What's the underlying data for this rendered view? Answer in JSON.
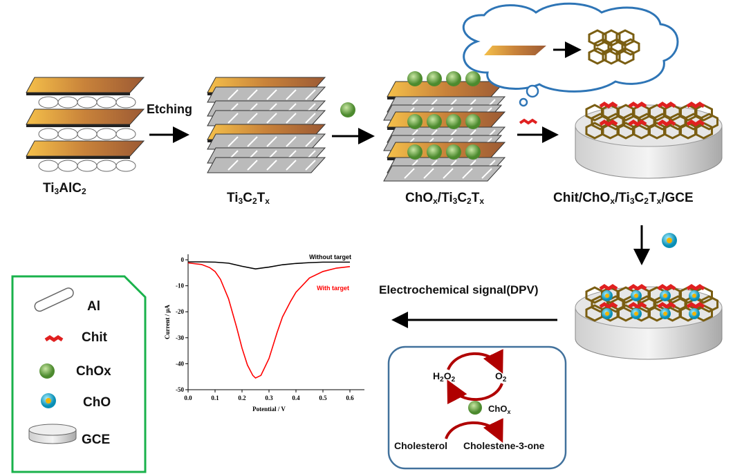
{
  "labels": {
    "ti3alc2": [
      "Ti",
      "3",
      "AlC",
      "2"
    ],
    "ti3c2tx": [
      "Ti",
      "3",
      "C",
      "2",
      "T",
      "x"
    ],
    "chox_ti3c2tx": [
      "ChO",
      "x",
      "/Ti",
      "3",
      "C",
      "2",
      "T",
      "x"
    ],
    "electrode": [
      "Chit/ChO",
      "x",
      "/Ti",
      "3",
      "C",
      "2",
      "T",
      "x",
      "/GCE"
    ],
    "etching": "Etching",
    "signal": "Electrochemical signal(DPV)"
  },
  "legend": {
    "items": [
      {
        "label": "Al",
        "icon": "cylinder-icon"
      },
      {
        "label": "Chit",
        "icon": "chitosan-icon"
      },
      {
        "label": "ChOx",
        "icon": "chox-sphere-icon"
      },
      {
        "label": "ChO",
        "icon": "cho-sphere-icon"
      },
      {
        "label": "GCE",
        "icon": "electrode-disk-icon"
      }
    ]
  },
  "reaction": {
    "h2o2": [
      "H",
      "2",
      "O",
      "2"
    ],
    "o2": [
      "O",
      "2"
    ],
    "enzyme": [
      "ChO",
      "x"
    ],
    "substrate": "Cholesterol",
    "product": "Cholestene-3-one"
  },
  "colors": {
    "legend_border": "#19b24b",
    "reaction_border": "#41719c",
    "cloud": "#2e75b6",
    "curve_target": "#ff0000",
    "curve_blank": "#000000"
  },
  "chart_data": {
    "type": "line",
    "xlabel": "Potential / V",
    "ylabel": "Current / μA",
    "xlim": [
      0,
      0.65
    ],
    "ylim": [
      -50,
      2
    ],
    "xticks": [
      "0.0",
      "0.1",
      "0.2",
      "0.3",
      "0.4",
      "0.5",
      "0.6"
    ],
    "yticks": [
      "0",
      "-10",
      "-20",
      "-30",
      "-40",
      "-50"
    ],
    "series": [
      {
        "name": "Without target",
        "color": "#000000",
        "x": [
          0,
          0.05,
          0.1,
          0.15,
          0.2,
          0.25,
          0.3,
          0.35,
          0.4,
          0.45,
          0.5,
          0.55,
          0.6
        ],
        "y": [
          -0.8,
          -0.8,
          -0.9,
          -1.3,
          -2.5,
          -3.5,
          -2.8,
          -1.9,
          -1.4,
          -1.1,
          -0.9,
          -0.9,
          -0.9
        ]
      },
      {
        "name": "With target",
        "color": "#ff0000",
        "x": [
          0,
          0.05,
          0.08,
          0.1,
          0.12,
          0.15,
          0.18,
          0.2,
          0.22,
          0.24,
          0.25,
          0.27,
          0.3,
          0.33,
          0.35,
          0.38,
          0.4,
          0.45,
          0.5,
          0.55,
          0.6
        ],
        "y": [
          -1.2,
          -1.8,
          -3,
          -4.5,
          -7.5,
          -15,
          -26,
          -34,
          -40.5,
          -44.5,
          -45.5,
          -44.5,
          -38,
          -28,
          -22,
          -16,
          -12.5,
          -7,
          -4.5,
          -3.2,
          -2.6
        ]
      }
    ]
  }
}
